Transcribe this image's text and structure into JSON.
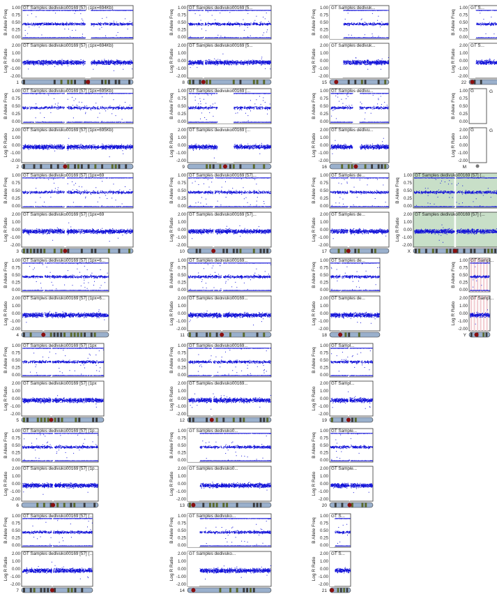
{
  "labels": {
    "baf_axis": "B Allele Freq",
    "lrr_axis": "Log R Ratio",
    "baf_ticks": [
      "1.00",
      "0.75",
      "0.50",
      "0.25",
      "0.00"
    ],
    "lrr_ticks": [
      "2.00",
      "1.00",
      "0.00",
      "-1.00",
      "-2.00"
    ],
    "mito_marker": "G"
  },
  "colors": {
    "points": "#1010d8",
    "cent_gap": "#d8d8d8",
    "band_light": "#9ab0cc",
    "band_dark": "#5c6a2a",
    "centromere": "#8a1010",
    "x_highlight": "#c8dfc8",
    "y_highlight": "#f3cfd4"
  },
  "chart_data": {
    "type": "scatter",
    "description_fields": [
      "chromosome",
      "baf_title",
      "lrr_title"
    ],
    "baf_ylim": [
      0,
      1
    ],
    "lrr_ylim": [
      -2,
      2
    ],
    "panels": [
      {
        "chromosome": "1",
        "baf_title": "GT Samples dedivuko00169 [57] (1px=694Kb)",
        "lrr_title": "GT Samples dedivuko00169 [57] (1px=694Kb)"
      },
      {
        "chromosome": "2",
        "baf_title": "GT Samples dedivuko00169 [57] (1px=695Kb)",
        "lrr_title": "GT Samples dedivuko00169 [57] (1px=695Kb)"
      },
      {
        "chromosome": "3",
        "baf_title": "GT Samples dedivuko00169 [57] (1px=69",
        "lrr_title": "GT Samples dedivuko00169 [57] (1px=69"
      },
      {
        "chromosome": "4",
        "baf_title": "GT Samples dedivuko00169 [57] (1px=6...",
        "lrr_title": "GT Samples dedivuko00169 [57] (1px=6..."
      },
      {
        "chromosome": "5",
        "baf_title": "GT Samples dedivuko00169 [57] (1px",
        "lrr_title": "GT Samples dedivuko00169 [57] (1px"
      },
      {
        "chromosome": "6",
        "baf_title": "GT Samples dedivuko00169 [57] (1p...",
        "lrr_title": "GT Samples dedivuko00169 [57] (1p..."
      },
      {
        "chromosome": "7",
        "baf_title": "GT Samples dedivuko00169 [57] (...",
        "lrr_title": "GT Samples dedivuko00169 [57] (..."
      },
      {
        "chromosome": "8",
        "baf_title": "GT Samples dedivuko00169 [5...",
        "lrr_title": "GT Samples dedivuko00169 [5..."
      },
      {
        "chromosome": "9",
        "baf_title": "GT Samples dedivuko00169 [...",
        "lrr_title": "GT Samples dedivuko00169 [..."
      },
      {
        "chromosome": "10",
        "baf_title": "GT Samples dedivuko00169 [57]...",
        "lrr_title": "GT Samples dedivuko00169 [57]..."
      },
      {
        "chromosome": "11",
        "baf_title": "GT Samples dedivuko00169...",
        "lrr_title": "GT Samples dedivuko00169..."
      },
      {
        "chromosome": "12",
        "baf_title": "GT Samples dedivuko00169...",
        "lrr_title": "GT Samples dedivuko00169..."
      },
      {
        "chromosome": "13",
        "baf_title": "GT Samples dedivuko0...",
        "lrr_title": "GT Samples dedivuko0..."
      },
      {
        "chromosome": "14",
        "baf_title": "GT Samples dedivuko...",
        "lrr_title": "GT Samples dedivuko..."
      },
      {
        "chromosome": "15",
        "baf_title": "GT Samples dedivuk...",
        "lrr_title": "GT Samples dedivuk..."
      },
      {
        "chromosome": "16",
        "baf_title": "GT Samples dedivu...",
        "lrr_title": "GT Samples dedivu..."
      },
      {
        "chromosome": "17",
        "baf_title": "GT Samples de...",
        "lrr_title": "GT Samples de..."
      },
      {
        "chromosome": "18",
        "baf_title": "GT Samples de...",
        "lrr_title": "GT Samples de..."
      },
      {
        "chromosome": "19",
        "baf_title": "GT Sampl...",
        "lrr_title": "GT Sampl..."
      },
      {
        "chromosome": "20",
        "baf_title": "GT Sample...",
        "lrr_title": "GT Sample..."
      },
      {
        "chromosome": "21",
        "baf_title": "GT S...",
        "lrr_title": "GT S..."
      },
      {
        "chromosome": "22",
        "baf_title": "GT S...",
        "lrr_title": "GT S..."
      },
      {
        "chromosome": "X",
        "baf_title": "GT Samples dedivuko00169 [57] (...",
        "lrr_title": "GT Samples dedivuko00169 [57] (..."
      },
      {
        "chromosome": "Y",
        "baf_title": "GT Sampl...",
        "lrr_title": "GT Sampl..."
      },
      {
        "chromosome": "M",
        "baf_title": "G",
        "lrr_title": "G"
      }
    ]
  }
}
